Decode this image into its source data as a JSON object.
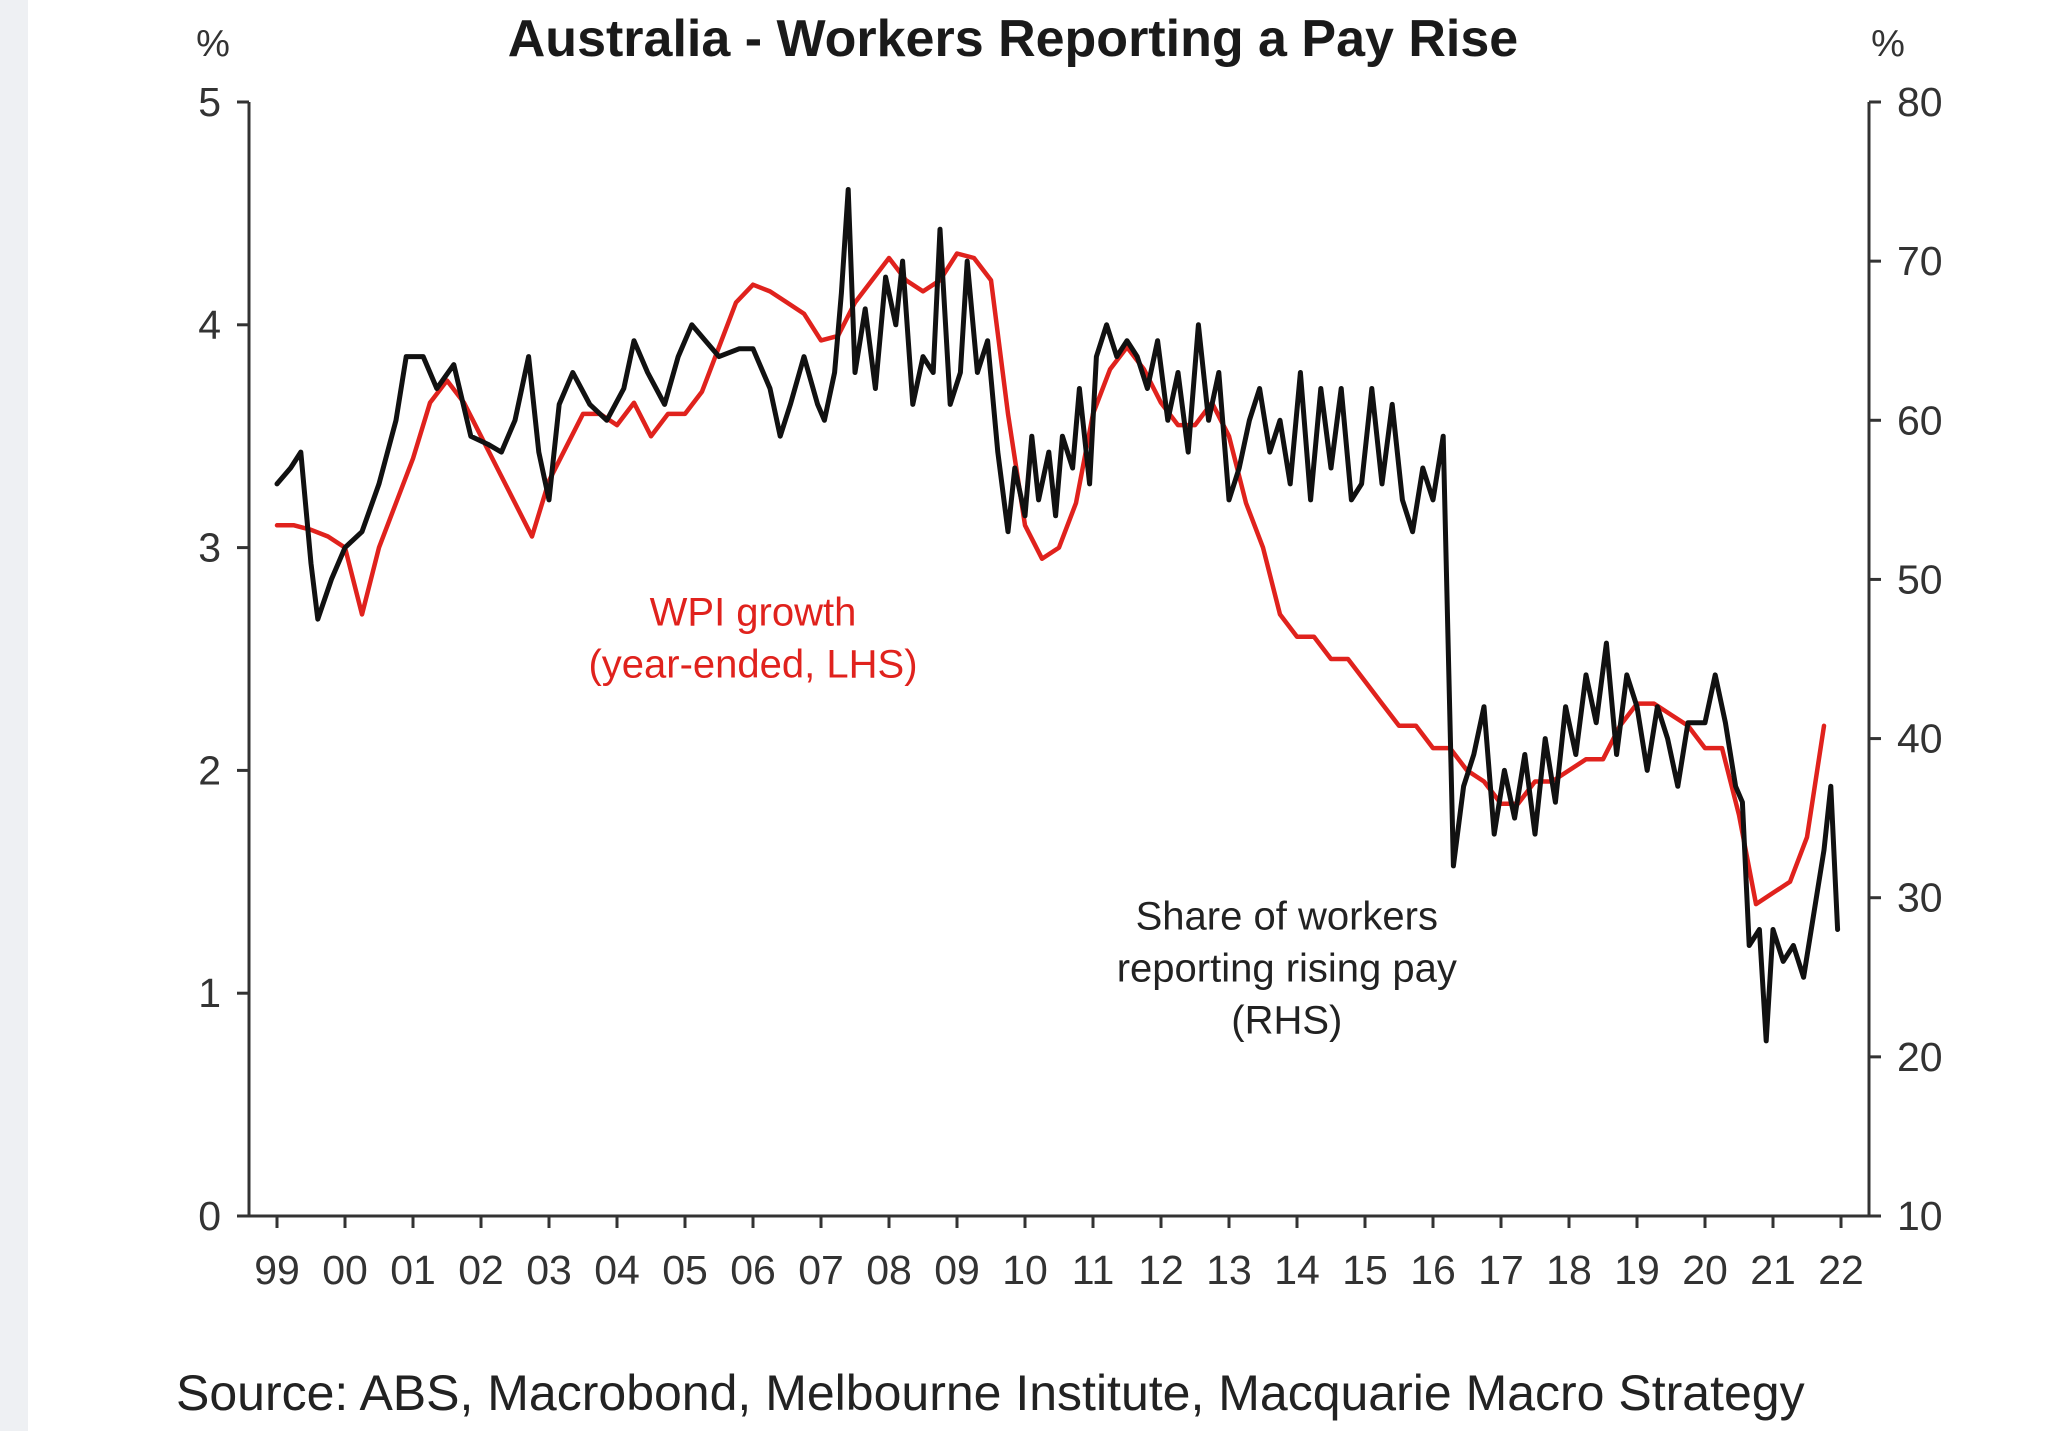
{
  "source": "Source: ABS, Macrobond, Melbourne Institute, Macquarie Macro Strategy",
  "chart_data": {
    "type": "line",
    "title": "Australia - Workers Reporting a Pay Rise",
    "left_unit": "%",
    "right_unit": "%",
    "ylim_left": [
      0,
      5
    ],
    "ylim_right": [
      10,
      80
    ],
    "yticks_left": [
      "0",
      "1",
      "2",
      "3",
      "4",
      "5"
    ],
    "yticks_right": [
      "10",
      "20",
      "30",
      "40",
      "50",
      "60",
      "70",
      "80"
    ],
    "x_range": [
      1999,
      2022
    ],
    "xticks": [
      "99",
      "00",
      "01",
      "02",
      "03",
      "04",
      "05",
      "06",
      "07",
      "08",
      "09",
      "10",
      "11",
      "12",
      "13",
      "14",
      "15",
      "16",
      "17",
      "18",
      "19",
      "20",
      "21",
      "22"
    ],
    "grid": false,
    "colors": {
      "wpi": "#e0221d",
      "share": "#111111"
    },
    "annotations": [
      {
        "series": "wpi",
        "lines": [
          "WPI growth",
          "(year-ended, LHS)"
        ],
        "color": "#e0221d"
      },
      {
        "series": "share",
        "lines": [
          "Share of workers",
          "reporting rising pay",
          "(RHS)"
        ],
        "color": "#222222"
      }
    ],
    "series": [
      {
        "key": "wpi",
        "axis": "left",
        "points": [
          [
            1999.0,
            3.1
          ],
          [
            1999.25,
            3.1
          ],
          [
            1999.5,
            3.08
          ],
          [
            1999.75,
            3.05
          ],
          [
            2000.0,
            3.0
          ],
          [
            2000.25,
            2.7
          ],
          [
            2000.5,
            3.0
          ],
          [
            2000.75,
            3.2
          ],
          [
            2001.0,
            3.4
          ],
          [
            2001.25,
            3.65
          ],
          [
            2001.5,
            3.75
          ],
          [
            2001.75,
            3.65
          ],
          [
            2002.0,
            3.5
          ],
          [
            2002.25,
            3.35
          ],
          [
            2002.5,
            3.2
          ],
          [
            2002.75,
            3.05
          ],
          [
            2003.0,
            3.3
          ],
          [
            2003.25,
            3.45
          ],
          [
            2003.5,
            3.6
          ],
          [
            2003.75,
            3.6
          ],
          [
            2004.0,
            3.55
          ],
          [
            2004.25,
            3.65
          ],
          [
            2004.5,
            3.5
          ],
          [
            2004.75,
            3.6
          ],
          [
            2005.0,
            3.6
          ],
          [
            2005.25,
            3.7
          ],
          [
            2005.5,
            3.9
          ],
          [
            2005.75,
            4.1
          ],
          [
            2006.0,
            4.18
          ],
          [
            2006.25,
            4.15
          ],
          [
            2006.5,
            4.1
          ],
          [
            2006.75,
            4.05
          ],
          [
            2007.0,
            3.93
          ],
          [
            2007.25,
            3.95
          ],
          [
            2007.5,
            4.1
          ],
          [
            2007.75,
            4.2
          ],
          [
            2008.0,
            4.3
          ],
          [
            2008.25,
            4.2
          ],
          [
            2008.5,
            4.15
          ],
          [
            2008.75,
            4.2
          ],
          [
            2009.0,
            4.32
          ],
          [
            2009.25,
            4.3
          ],
          [
            2009.5,
            4.2
          ],
          [
            2009.75,
            3.6
          ],
          [
            2010.0,
            3.1
          ],
          [
            2010.25,
            2.95
          ],
          [
            2010.5,
            3.0
          ],
          [
            2010.75,
            3.2
          ],
          [
            2011.0,
            3.6
          ],
          [
            2011.25,
            3.8
          ],
          [
            2011.5,
            3.9
          ],
          [
            2011.75,
            3.8
          ],
          [
            2012.0,
            3.65
          ],
          [
            2012.25,
            3.55
          ],
          [
            2012.5,
            3.55
          ],
          [
            2012.75,
            3.65
          ],
          [
            2013.0,
            3.5
          ],
          [
            2013.25,
            3.2
          ],
          [
            2013.5,
            3.0
          ],
          [
            2013.75,
            2.7
          ],
          [
            2014.0,
            2.6
          ],
          [
            2014.25,
            2.6
          ],
          [
            2014.5,
            2.5
          ],
          [
            2014.75,
            2.5
          ],
          [
            2015.0,
            2.4
          ],
          [
            2015.25,
            2.3
          ],
          [
            2015.5,
            2.2
          ],
          [
            2015.75,
            2.2
          ],
          [
            2016.0,
            2.1
          ],
          [
            2016.25,
            2.1
          ],
          [
            2016.5,
            2.0
          ],
          [
            2016.75,
            1.95
          ],
          [
            2017.0,
            1.85
          ],
          [
            2017.25,
            1.85
          ],
          [
            2017.5,
            1.95
          ],
          [
            2017.75,
            1.95
          ],
          [
            2018.0,
            2.0
          ],
          [
            2018.25,
            2.05
          ],
          [
            2018.5,
            2.05
          ],
          [
            2018.75,
            2.2
          ],
          [
            2019.0,
            2.3
          ],
          [
            2019.25,
            2.3
          ],
          [
            2019.5,
            2.25
          ],
          [
            2019.75,
            2.2
          ],
          [
            2020.0,
            2.1
          ],
          [
            2020.25,
            2.1
          ],
          [
            2020.5,
            1.8
          ],
          [
            2020.75,
            1.4
          ],
          [
            2021.0,
            1.45
          ],
          [
            2021.25,
            1.5
          ],
          [
            2021.5,
            1.7
          ],
          [
            2021.75,
            2.2
          ]
        ]
      },
      {
        "key": "share",
        "axis": "right",
        "points": [
          [
            1999.0,
            56
          ],
          [
            1999.2,
            57
          ],
          [
            1999.35,
            58
          ],
          [
            1999.5,
            51
          ],
          [
            1999.6,
            47.5
          ],
          [
            1999.8,
            50
          ],
          [
            2000.0,
            52
          ],
          [
            2000.25,
            53
          ],
          [
            2000.5,
            56
          ],
          [
            2000.75,
            60
          ],
          [
            2000.9,
            64
          ],
          [
            2001.15,
            64
          ],
          [
            2001.35,
            62
          ],
          [
            2001.6,
            63.5
          ],
          [
            2001.85,
            59
          ],
          [
            2002.1,
            58.5
          ],
          [
            2002.3,
            58
          ],
          [
            2002.5,
            60
          ],
          [
            2002.7,
            64
          ],
          [
            2002.85,
            58
          ],
          [
            2003.0,
            55
          ],
          [
            2003.15,
            61
          ],
          [
            2003.35,
            63
          ],
          [
            2003.6,
            61
          ],
          [
            2003.85,
            60
          ],
          [
            2004.1,
            62
          ],
          [
            2004.25,
            65
          ],
          [
            2004.45,
            63
          ],
          [
            2004.7,
            61
          ],
          [
            2004.9,
            64
          ],
          [
            2005.1,
            66
          ],
          [
            2005.3,
            65
          ],
          [
            2005.5,
            64
          ],
          [
            2005.8,
            64.5
          ],
          [
            2006.0,
            64.5
          ],
          [
            2006.25,
            62
          ],
          [
            2006.4,
            59
          ],
          [
            2006.55,
            61
          ],
          [
            2006.75,
            64
          ],
          [
            2006.95,
            61
          ],
          [
            2007.05,
            60
          ],
          [
            2007.2,
            63
          ],
          [
            2007.3,
            68
          ],
          [
            2007.4,
            74.5
          ],
          [
            2007.5,
            63
          ],
          [
            2007.65,
            67
          ],
          [
            2007.8,
            62
          ],
          [
            2007.95,
            69
          ],
          [
            2008.1,
            66
          ],
          [
            2008.2,
            70
          ],
          [
            2008.35,
            61
          ],
          [
            2008.5,
            64
          ],
          [
            2008.65,
            63
          ],
          [
            2008.75,
            72
          ],
          [
            2008.9,
            61
          ],
          [
            2009.05,
            63
          ],
          [
            2009.15,
            70
          ],
          [
            2009.3,
            63
          ],
          [
            2009.45,
            65
          ],
          [
            2009.6,
            58
          ],
          [
            2009.75,
            53
          ],
          [
            2009.85,
            57
          ],
          [
            2010.0,
            54
          ],
          [
            2010.1,
            59
          ],
          [
            2010.2,
            55
          ],
          [
            2010.35,
            58
          ],
          [
            2010.45,
            54
          ],
          [
            2010.55,
            59
          ],
          [
            2010.7,
            57
          ],
          [
            2010.8,
            62
          ],
          [
            2010.95,
            56
          ],
          [
            2011.05,
            64
          ],
          [
            2011.2,
            66
          ],
          [
            2011.35,
            64
          ],
          [
            2011.5,
            65
          ],
          [
            2011.65,
            64
          ],
          [
            2011.8,
            62
          ],
          [
            2011.95,
            65
          ],
          [
            2012.1,
            60
          ],
          [
            2012.25,
            63
          ],
          [
            2012.4,
            58
          ],
          [
            2012.55,
            66
          ],
          [
            2012.7,
            60
          ],
          [
            2012.85,
            63
          ],
          [
            2013.0,
            55
          ],
          [
            2013.15,
            57
          ],
          [
            2013.3,
            60
          ],
          [
            2013.45,
            62
          ],
          [
            2013.6,
            58
          ],
          [
            2013.75,
            60
          ],
          [
            2013.9,
            56
          ],
          [
            2014.05,
            63
          ],
          [
            2014.2,
            55
          ],
          [
            2014.35,
            62
          ],
          [
            2014.5,
            57
          ],
          [
            2014.65,
            62
          ],
          [
            2014.8,
            55
          ],
          [
            2014.95,
            56
          ],
          [
            2015.1,
            62
          ],
          [
            2015.25,
            56
          ],
          [
            2015.4,
            61
          ],
          [
            2015.55,
            55
          ],
          [
            2015.7,
            53
          ],
          [
            2015.85,
            57
          ],
          [
            2016.0,
            55
          ],
          [
            2016.15,
            59
          ],
          [
            2016.3,
            32
          ],
          [
            2016.45,
            37
          ],
          [
            2016.6,
            39
          ],
          [
            2016.75,
            42
          ],
          [
            2016.9,
            34
          ],
          [
            2017.05,
            38
          ],
          [
            2017.2,
            35
          ],
          [
            2017.35,
            39
          ],
          [
            2017.5,
            34
          ],
          [
            2017.65,
            40
          ],
          [
            2017.8,
            36
          ],
          [
            2017.95,
            42
          ],
          [
            2018.1,
            39
          ],
          [
            2018.25,
            44
          ],
          [
            2018.4,
            41
          ],
          [
            2018.55,
            46
          ],
          [
            2018.7,
            39
          ],
          [
            2018.85,
            44
          ],
          [
            2019.0,
            42
          ],
          [
            2019.15,
            38
          ],
          [
            2019.3,
            42
          ],
          [
            2019.45,
            40
          ],
          [
            2019.6,
            37
          ],
          [
            2019.75,
            41
          ],
          [
            2020.0,
            41
          ],
          [
            2020.15,
            44
          ],
          [
            2020.3,
            41
          ],
          [
            2020.45,
            37
          ],
          [
            2020.55,
            36
          ],
          [
            2020.65,
            27
          ],
          [
            2020.8,
            28
          ],
          [
            2020.9,
            21
          ],
          [
            2021.0,
            28
          ],
          [
            2021.15,
            26
          ],
          [
            2021.3,
            27
          ],
          [
            2021.45,
            25
          ],
          [
            2021.6,
            29
          ],
          [
            2021.75,
            33
          ],
          [
            2021.85,
            37
          ],
          [
            2021.95,
            28
          ]
        ]
      }
    ]
  }
}
